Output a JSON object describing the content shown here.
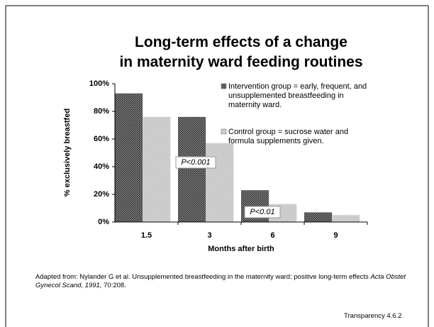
{
  "chart_data": {
    "type": "bar",
    "title": "Long-term effects of a change in maternity ward feeding routines",
    "categories": [
      "1.5",
      "3",
      "6",
      "9"
    ],
    "series": [
      {
        "name": "Intervention group = early, frequent, and unsupplemented breastfeeding in maternity ward.",
        "color": "#555555",
        "values": [
          93,
          76,
          23,
          7
        ]
      },
      {
        "name": "Control group = sucrose water and formula supplements given.",
        "color": "#bbbbbb",
        "values": [
          76,
          57,
          13,
          5
        ]
      }
    ],
    "ylim": [
      0,
      100
    ],
    "yticks": [
      {
        "value": 0,
        "label": "0%"
      },
      {
        "value": 20,
        "label": "20%"
      },
      {
        "value": 40,
        "label": "40%"
      },
      {
        "value": 60,
        "label": "60%"
      },
      {
        "value": 80,
        "label": "80%"
      },
      {
        "value": 100,
        "label": "100%"
      }
    ],
    "ylabel": "% exclusively breastfed",
    "xlabel": "Months after birth",
    "annotations": [
      "P<0.001",
      "P<0.01"
    ],
    "grid": false
  },
  "footer": {
    "source": [
      "Adapted from: Nylander G et al. Unsupplemented breastfeeding in the maternity ward: positive long-term effects ",
      "Acta Obstet Gynecol Scand, 1991,",
      " 70:208."
    ],
    "label": "Transparency 4.6.2"
  }
}
